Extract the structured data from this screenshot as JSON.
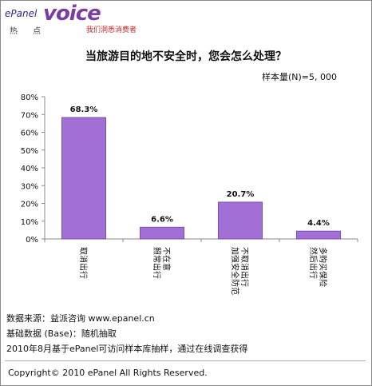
{
  "brand": {
    "prefix": "ePanel",
    "name": "voice",
    "sub": "热 点",
    "tagline": "我们洞悉消费者"
  },
  "sample_label": "样本量(N)=5, 000",
  "chart_data": {
    "type": "bar",
    "title": "当旅游目的地不安全时，您会怎么处理？",
    "categories": [
      "取消出行",
      "照常出行 不在意",
      "不取消出行 加强安全防范",
      "多购买保险 然后出行"
    ],
    "category_lines": [
      [
        "取消出行"
      ],
      [
        "不在意",
        "照常出行"
      ],
      [
        "不取消出行",
        "加强安全防范"
      ],
      [
        "多购买保险",
        "然后出行"
      ]
    ],
    "values": [
      68.3,
      6.6,
      20.7,
      4.4
    ],
    "data_labels": [
      "68.3%",
      "6.6%",
      "20.7%",
      "4.4%"
    ],
    "y_ticks": [
      "0%",
      "10%",
      "20%",
      "30%",
      "40%",
      "50%",
      "60%",
      "70%",
      "80%"
    ],
    "ylim": [
      0,
      80
    ],
    "bar_color": "#a26fd6",
    "bar_edge": "#7a4fb0",
    "grid": false
  },
  "notes": [
    "数据来源：益派咨询   www.epanel.cn",
    "基础数据 (Base)：随机抽取",
    "2010年8月基于ePanel可访问样本库抽样，通过在线调查获得"
  ],
  "copyright": "Copyright© 2010 ePanel All Rights Reserved."
}
